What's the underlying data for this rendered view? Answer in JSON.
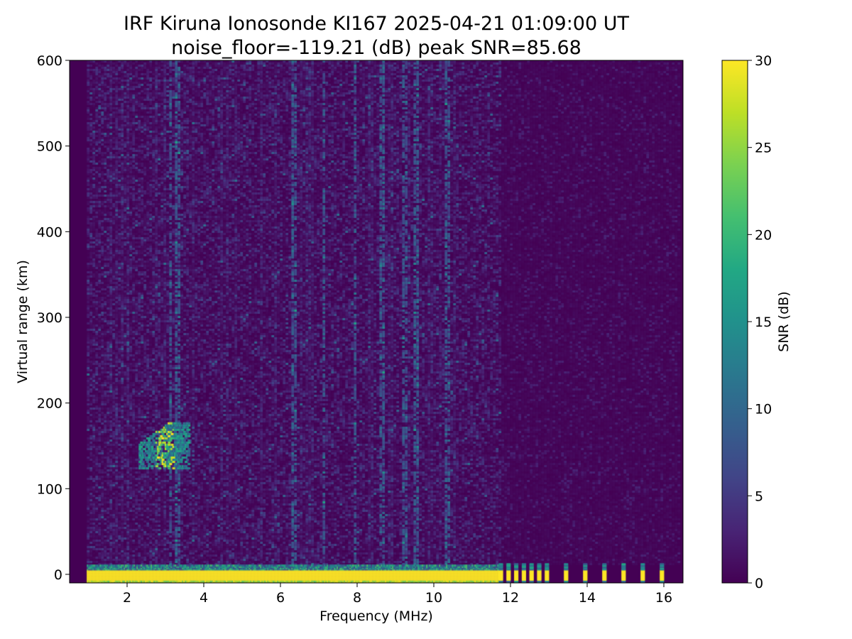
{
  "chart_data": {
    "type": "heatmap",
    "title": [
      "IRF Kiruna Ionosonde KI167 2025-04-21 01:09:00  UT",
      "noise_floor=-119.21 (dB) peak SNR=85.68"
    ],
    "xlabel": "Frequency (MHz)",
    "ylabel": "Virtual range (km)",
    "xlim": [
      0.5,
      16.5
    ],
    "ylim": [
      -10,
      600
    ],
    "xticks": [
      2,
      4,
      6,
      8,
      10,
      12,
      14,
      16
    ],
    "yticks": [
      0,
      100,
      200,
      300,
      400,
      500,
      600
    ],
    "colorbar": {
      "label": "SNR (dB)",
      "range": [
        0,
        30
      ],
      "ticks": [
        0,
        5,
        10,
        15,
        20,
        25,
        30
      ],
      "colormap": "viridis"
    },
    "data_freq_range": [
      0.95,
      16.4
    ],
    "features": [
      {
        "desc": "ground/near-range echo band (saturated)",
        "freq": [
          0.95,
          11.7
        ],
        "range": [
          -8,
          6
        ],
        "snr": 30
      },
      {
        "desc": "discrete high-freq channels near-range",
        "freqs": [
          11.75,
          11.95,
          12.15,
          12.35,
          12.55,
          12.75,
          12.95,
          13.45,
          13.95,
          14.45,
          14.95,
          15.45,
          15.95
        ],
        "range": [
          -8,
          8
        ],
        "snr": 30
      },
      {
        "desc": "E-layer trace",
        "freq": [
          2.3,
          3.6
        ],
        "range": [
          125,
          180
        ],
        "snr": 22
      },
      {
        "desc": "vertical interference streaks",
        "freqs": [
          3.1,
          3.3,
          6.3,
          7.1,
          7.9,
          8.6,
          9.2,
          9.5,
          10.3
        ],
        "snr": 8
      }
    ]
  }
}
